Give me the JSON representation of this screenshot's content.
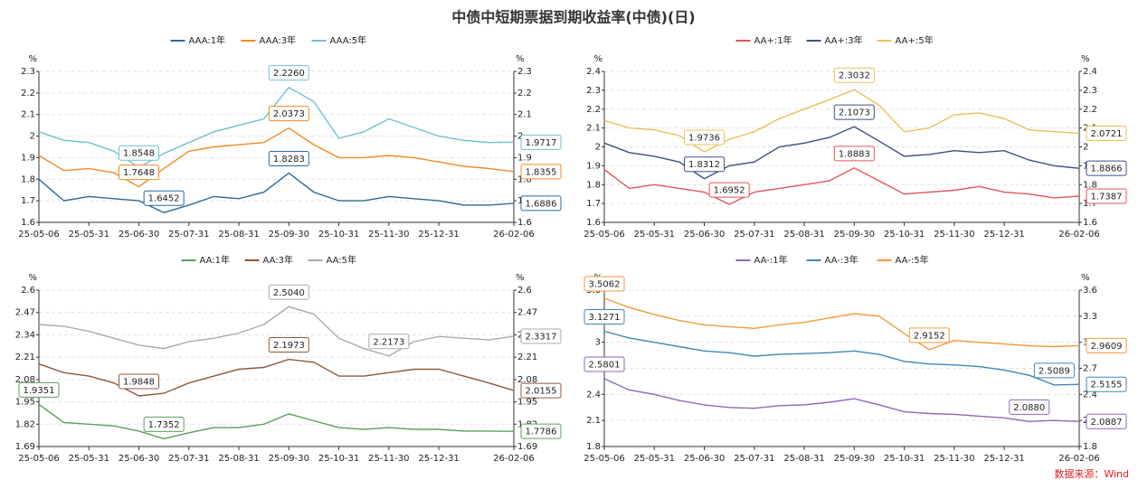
{
  "title": "中债中短期票据到期收益率(中债)(日)",
  "source": "数据来源：Wind",
  "chart_data": [
    {
      "type": "line",
      "unit": "%",
      "categories": [
        "25-05-06",
        "25-05-18",
        "25-05-31",
        "25-06-15",
        "25-06-30",
        "25-07-15",
        "25-07-31",
        "25-08-15",
        "25-08-31",
        "25-09-15",
        "25-09-30",
        "25-10-15",
        "25-10-31",
        "25-11-15",
        "25-11-30",
        "25-12-15",
        "25-12-31",
        "26-01-15",
        "26-01-25",
        "26-02-06"
      ],
      "xticks": [
        "25-05-06",
        "25-05-31",
        "25-06-30",
        "25-07-31",
        "25-08-31",
        "25-09-30",
        "25-10-31",
        "25-11-30",
        "25-12-31",
        "26-02-06"
      ],
      "ylim": [
        1.6,
        2.3
      ],
      "yticks": [
        1.6,
        1.7,
        1.8,
        1.9,
        2,
        2.1,
        2.2,
        2.3
      ],
      "grid": true,
      "series": [
        {
          "name": "AAA:1年",
          "color": "#2a6b9a",
          "values": [
            1.8,
            1.7,
            1.72,
            1.71,
            1.7,
            1.6452,
            1.68,
            1.72,
            1.71,
            1.74,
            1.8283,
            1.74,
            1.7,
            1.7,
            1.72,
            1.71,
            1.7,
            1.68,
            1.68,
            1.6886
          ],
          "value_labels": [
            null,
            null,
            null,
            null,
            null,
            "1.6452",
            null,
            null,
            null,
            null,
            "1.8283",
            null,
            null,
            null,
            null,
            null,
            null,
            null,
            null,
            "1.6886"
          ]
        },
        {
          "name": "AAA:3年",
          "color": "#f08a24",
          "values": [
            1.91,
            1.84,
            1.85,
            1.83,
            1.7648,
            1.85,
            1.93,
            1.95,
            1.96,
            1.97,
            2.0373,
            1.96,
            1.9,
            1.9,
            1.91,
            1.9,
            1.88,
            1.86,
            1.85,
            1.8355
          ],
          "value_labels": [
            null,
            null,
            null,
            null,
            "1.7648",
            null,
            null,
            null,
            null,
            null,
            "2.0373",
            null,
            null,
            null,
            null,
            null,
            null,
            null,
            null,
            "1.8355"
          ]
        },
        {
          "name": "AAA:5年",
          "color": "#6cc3cb",
          "values": [
            2.02,
            1.98,
            1.97,
            1.93,
            1.8548,
            1.92,
            1.97,
            2.02,
            2.05,
            2.08,
            2.226,
            2.16,
            1.99,
            2.02,
            2.08,
            2.04,
            2.0,
            1.98,
            1.97,
            1.9717
          ],
          "value_labels": [
            null,
            null,
            null,
            null,
            "1.8548",
            null,
            null,
            null,
            null,
            null,
            "2.2260",
            null,
            null,
            null,
            null,
            null,
            null,
            null,
            null,
            "1.9717"
          ]
        }
      ]
    },
    {
      "type": "line",
      "unit": "%",
      "categories": [
        "25-05-06",
        "25-05-18",
        "25-05-31",
        "25-06-15",
        "25-06-30",
        "25-07-15",
        "25-07-31",
        "25-08-15",
        "25-08-31",
        "25-09-15",
        "25-09-30",
        "25-10-15",
        "25-10-31",
        "25-11-15",
        "25-11-30",
        "25-12-15",
        "25-12-31",
        "26-01-15",
        "26-01-25",
        "26-02-06"
      ],
      "xticks": [
        "25-05-06",
        "25-05-31",
        "25-06-30",
        "25-07-31",
        "25-08-31",
        "25-09-30",
        "25-10-31",
        "25-11-30",
        "25-12-31",
        "26-02-06"
      ],
      "ylim": [
        1.6,
        2.4
      ],
      "yticks": [
        1.6,
        1.7,
        1.8,
        1.9,
        2,
        2.1,
        2.2,
        2.3,
        2.4
      ],
      "grid": true,
      "series": [
        {
          "name": "AA+:1年",
          "color": "#e0575b",
          "values": [
            1.88,
            1.78,
            1.8,
            1.78,
            1.76,
            1.6952,
            1.76,
            1.78,
            1.8,
            1.82,
            1.8883,
            1.82,
            1.75,
            1.76,
            1.77,
            1.79,
            1.76,
            1.75,
            1.73,
            1.7387
          ],
          "value_labels": [
            null,
            null,
            null,
            null,
            null,
            "1.6952",
            null,
            null,
            null,
            null,
            "1.8883",
            null,
            null,
            null,
            null,
            null,
            null,
            null,
            null,
            "1.7387"
          ]
        },
        {
          "name": "AA+:3年",
          "color": "#3c4f85",
          "values": [
            2.02,
            1.97,
            1.95,
            1.92,
            1.8312,
            1.9,
            1.92,
            2.0,
            2.02,
            2.05,
            2.1073,
            2.03,
            1.95,
            1.96,
            1.98,
            1.97,
            1.98,
            1.93,
            1.9,
            1.8866
          ],
          "value_labels": [
            null,
            null,
            null,
            null,
            "1.8312",
            null,
            null,
            null,
            null,
            null,
            "2.1073",
            null,
            null,
            null,
            null,
            null,
            null,
            null,
            null,
            "1.8866"
          ]
        },
        {
          "name": "AA+:5年",
          "color": "#e8c15a",
          "values": [
            2.14,
            2.1,
            2.09,
            2.06,
            1.9736,
            2.04,
            2.08,
            2.15,
            2.2,
            2.25,
            2.3032,
            2.22,
            2.08,
            2.1,
            2.17,
            2.18,
            2.15,
            2.09,
            2.08,
            2.0721
          ],
          "value_labels": [
            null,
            null,
            null,
            null,
            "1.9736",
            null,
            null,
            null,
            null,
            null,
            "2.3032",
            null,
            null,
            null,
            null,
            null,
            null,
            null,
            null,
            "2.0721"
          ]
        }
      ]
    },
    {
      "type": "line",
      "unit": "%",
      "categories": [
        "25-05-06",
        "25-05-18",
        "25-05-31",
        "25-06-15",
        "25-06-30",
        "25-07-15",
        "25-07-31",
        "25-08-15",
        "25-08-31",
        "25-09-15",
        "25-09-30",
        "25-10-15",
        "25-10-31",
        "25-11-15",
        "25-11-30",
        "25-12-15",
        "25-12-31",
        "26-01-15",
        "26-01-25",
        "26-02-06"
      ],
      "xticks": [
        "25-05-06",
        "25-05-31",
        "25-06-30",
        "25-07-31",
        "25-08-31",
        "25-09-30",
        "25-10-31",
        "25-11-30",
        "25-12-31",
        "26-02-06"
      ],
      "ylim": [
        1.69,
        2.6
      ],
      "yticks": [
        1.69,
        1.82,
        1.95,
        2.08,
        2.21,
        2.34,
        2.47,
        2.6
      ],
      "grid": true,
      "series": [
        {
          "name": "AA:1年",
          "color": "#5c9e5c",
          "values": [
            1.9351,
            1.83,
            1.82,
            1.81,
            1.78,
            1.7352,
            1.77,
            1.8,
            1.8,
            1.82,
            1.88,
            1.84,
            1.8,
            1.79,
            1.8,
            1.79,
            1.79,
            1.78,
            1.78,
            1.7786
          ],
          "value_labels": [
            "1.9351",
            null,
            null,
            null,
            null,
            "1.7352",
            null,
            null,
            null,
            null,
            null,
            null,
            null,
            null,
            null,
            null,
            null,
            null,
            null,
            "1.7786"
          ]
        },
        {
          "name": "AA:3年",
          "color": "#8b5a3c",
          "values": [
            2.17,
            2.12,
            2.1,
            2.06,
            1.9848,
            2.0,
            2.06,
            2.1,
            2.14,
            2.15,
            2.1973,
            2.18,
            2.1,
            2.1,
            2.12,
            2.14,
            2.14,
            2.1,
            2.06,
            2.0155
          ],
          "value_labels": [
            null,
            null,
            null,
            null,
            "1.9848",
            null,
            null,
            null,
            null,
            null,
            "2.1973",
            null,
            null,
            null,
            null,
            null,
            null,
            null,
            null,
            "2.0155"
          ]
        },
        {
          "name": "AA:5年",
          "color": "#aaaaaa",
          "values": [
            2.4,
            2.39,
            2.36,
            2.32,
            2.28,
            2.26,
            2.3,
            2.32,
            2.35,
            2.4,
            2.504,
            2.46,
            2.32,
            2.26,
            2.2173,
            2.3,
            2.33,
            2.32,
            2.31,
            2.3317
          ],
          "value_labels": [
            null,
            null,
            null,
            null,
            null,
            null,
            null,
            null,
            null,
            null,
            "2.5040",
            null,
            null,
            null,
            "2.2173",
            null,
            null,
            null,
            null,
            "2.3317"
          ]
        }
      ]
    },
    {
      "type": "line",
      "unit": "%",
      "categories": [
        "25-05-06",
        "25-05-18",
        "25-05-31",
        "25-06-15",
        "25-06-30",
        "25-07-15",
        "25-07-31",
        "25-08-15",
        "25-08-31",
        "25-09-15",
        "25-09-30",
        "25-10-15",
        "25-10-31",
        "25-11-15",
        "25-11-30",
        "25-12-15",
        "25-12-31",
        "26-01-15",
        "26-01-25",
        "26-02-06"
      ],
      "xticks": [
        "25-05-06",
        "25-05-31",
        "25-06-30",
        "25-07-31",
        "25-08-31",
        "25-09-30",
        "25-10-31",
        "25-11-30",
        "25-12-31",
        "26-02-06"
      ],
      "ylim": [
        1.8,
        3.6
      ],
      "yticks": [
        1.8,
        2.1,
        2.4,
        2.7,
        3,
        3.3,
        3.6
      ],
      "grid": true,
      "series": [
        {
          "name": "AA-:1年",
          "color": "#8f67b6",
          "values": [
            2.5801,
            2.45,
            2.4,
            2.33,
            2.28,
            2.25,
            2.24,
            2.27,
            2.28,
            2.31,
            2.35,
            2.28,
            2.2,
            2.18,
            2.17,
            2.15,
            2.13,
            2.088,
            2.1,
            2.0887
          ],
          "value_labels": [
            "2.5801",
            null,
            null,
            null,
            null,
            null,
            null,
            null,
            null,
            null,
            null,
            null,
            null,
            null,
            null,
            null,
            null,
            "2.0880",
            null,
            "2.0887"
          ]
        },
        {
          "name": "AA-:3年",
          "color": "#3f89b4",
          "values": [
            3.1271,
            3.05,
            3.0,
            2.95,
            2.9,
            2.88,
            2.84,
            2.86,
            2.87,
            2.88,
            2.9,
            2.86,
            2.78,
            2.75,
            2.74,
            2.72,
            2.68,
            2.62,
            2.5089,
            2.5155
          ],
          "value_labels": [
            "3.1271",
            null,
            null,
            null,
            null,
            null,
            null,
            null,
            null,
            null,
            null,
            null,
            null,
            null,
            null,
            null,
            null,
            null,
            "2.5089",
            "2.5155"
          ]
        },
        {
          "name": "AA-:5年",
          "color": "#f39a3a",
          "values": [
            3.5062,
            3.4,
            3.32,
            3.25,
            3.2,
            3.18,
            3.16,
            3.2,
            3.23,
            3.28,
            3.33,
            3.3,
            3.1,
            2.9152,
            3.02,
            3.0,
            2.98,
            2.96,
            2.95,
            2.9609
          ],
          "value_labels": [
            "3.5062",
            null,
            null,
            null,
            null,
            null,
            null,
            null,
            null,
            null,
            null,
            null,
            null,
            "2.9152",
            null,
            null,
            null,
            null,
            null,
            "2.9609"
          ]
        }
      ]
    }
  ]
}
